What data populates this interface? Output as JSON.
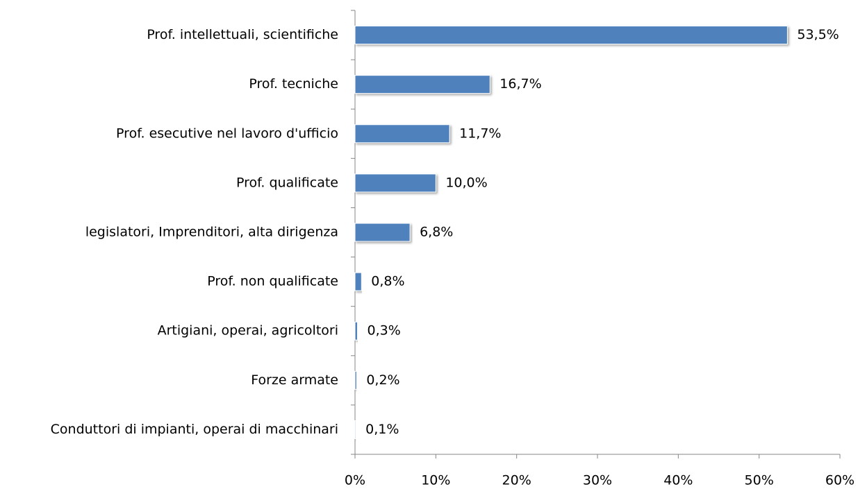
{
  "chart_data": {
    "type": "bar",
    "orientation": "horizontal",
    "categories": [
      "Prof. intellettuali, scientifiche",
      "Prof. tecniche",
      "Prof. esecutive nel lavoro d'ufficio",
      "Prof. qualificate",
      "legislatori, Imprenditori, alta dirigenza",
      "Prof. non qualificate",
      "Artigiani, operai, agricoltori",
      "Forze armate",
      "Conduttori di impianti, operai di macchinari"
    ],
    "values": [
      53.5,
      16.7,
      11.7,
      10.0,
      6.8,
      0.8,
      0.3,
      0.2,
      0.1
    ],
    "value_labels": [
      "53,5%",
      "16,7%",
      "11,7%",
      "10,0%",
      "6,8%",
      "0,8%",
      "0,3%",
      "0,2%",
      "0,1%"
    ],
    "color": "#4f81bd",
    "xlim": [
      0,
      60
    ],
    "xticks": [
      {
        "value": 0,
        "label": "0%"
      },
      {
        "value": 10,
        "label": "10%"
      },
      {
        "value": 20,
        "label": "20%"
      },
      {
        "value": 30,
        "label": "30%"
      },
      {
        "value": 40,
        "label": "40%"
      },
      {
        "value": 50,
        "label": "50%"
      },
      {
        "value": 60,
        "label": "60%"
      }
    ],
    "grid": false
  }
}
